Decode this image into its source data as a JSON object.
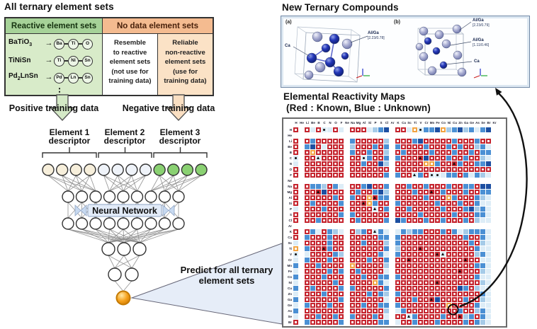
{
  "left_panel": {
    "title": "All ternary element sets",
    "table": {
      "reactive_header": "Reactive element sets",
      "no_data_header": "No data element sets",
      "rows": [
        {
          "formula": [
            [
              "t",
              "BaTiO"
            ],
            [
              "s",
              "3"
            ]
          ],
          "elements": [
            "Ba",
            "Ti",
            "O"
          ]
        },
        {
          "formula": [
            [
              "t",
              "TiNiSn"
            ]
          ],
          "elements": [
            "Ti",
            "Ni",
            "Sn"
          ]
        },
        {
          "formula": [
            [
              "t",
              "Pd"
            ],
            [
              "s",
              "2"
            ],
            [
              "t",
              "LnSn"
            ]
          ],
          "elements": [
            "Pd",
            "Ln",
            "Sn"
          ]
        }
      ],
      "ellipsis": "⋮",
      "resemble_lines": [
        "Resemble",
        "to reactive",
        "element sets",
        "(not use for",
        "training data)"
      ],
      "reliable_lines": [
        "Reliable",
        "non-reactive",
        "element sets",
        "(use for",
        "training data)"
      ]
    },
    "positive_label": "Positive training data",
    "negative_label": "Negative training data"
  },
  "network": {
    "descriptors": [
      {
        "line1": "Element 1",
        "line2": "descriptor"
      },
      {
        "line1": "Element 2",
        "line2": "descriptor"
      },
      {
        "line1": "Element 3",
        "line2": "descriptor"
      }
    ],
    "box_label": "Neural Network",
    "predict_line1": "Predict for all ternary",
    "predict_line2": "element sets"
  },
  "compounds": {
    "title": "New Ternary Compounds",
    "panel_a": {
      "tag": "(a)",
      "label_ca": "Ca",
      "label_alga": "Al/Ga",
      "label_alga_sub": "[2.23/0.78]"
    },
    "panel_b": {
      "tag": "(b)",
      "label_alga1": "Al/Ga",
      "label_alga1_sub": "[2.23/0.79]",
      "label_alga2": "Al/Ga",
      "label_alga2_sub": "[1.11/0.46]",
      "label_ca": "Ca"
    }
  },
  "reactivity": {
    "title": "Elemental Reactivity Maps",
    "subtitle": "(Red : Known, Blue : Unknown)",
    "legend": {
      "red_means": "Known",
      "blue_means": "Unknown"
    },
    "col_labels": [
      "H",
      "He",
      "Li",
      "Be",
      "B",
      "C",
      "N",
      "O",
      "F",
      "Ne",
      "Na",
      "Mg",
      "Al",
      "Si",
      "P",
      "S",
      "Cl",
      "Ar",
      "K",
      "Ca",
      "Sc",
      "Ti",
      "V",
      "Cr",
      "Mn",
      "Fe",
      "Co",
      "Ni",
      "Cu",
      "Zn",
      "Ga",
      "Ge",
      "As",
      "Se",
      "Br",
      "Kr"
    ],
    "row_labels": [
      "H",
      "He",
      "Li",
      "Be",
      "B",
      "C",
      "N",
      "O",
      "F",
      "Ne",
      "Na",
      "Mg",
      "Al",
      "Si",
      "P",
      "S",
      "Cl",
      "Ar",
      "K",
      "Ca",
      "Sc",
      "Ti",
      "V",
      "Cr",
      "Mn",
      "Fe",
      "Co",
      "Ni",
      "Cu",
      "Zn",
      "Ga",
      "Ge",
      "As",
      "Se",
      "Br"
    ],
    "grid": [
      "R.RwRCwRw.RrRwcbB.RRwOCbbBOcbBcbwbB.",
      "....................................",
      "R.RbrRRRr.bRrRrRc.RRrbBrrRrRbrRrbrR.",
      "R.bBrwRrR.cRrRbrb.bRrRrbRrrbRbrRcbw.",
      "R.rORrRrR.bRrbRrc.RbrrRrbRrRbrrbRbb.",
      "C.rRTrRrR.RrCbRrb.bRrRABrRrbRrbRrcw.",
      "w.RrRrRrR.rRbRrBc.RrRrrOObrRAbrRbbB.",
      "R.RrRrRrR.RrRrRrR.RrRrRrRrRrRrRrRrR.",
      "R.rRrRrRr.rRrRrRb.bRrTbrCCwbbrbwbcw.",
      "....................................",
      "R.Rbbcrbw.RrbBrRb.RrbrRbrrRbRrbbrBB.",
      "R.rRABrrR.rbRrbBc.RrRbrRArbRrRbrRbb.",
      "r.RrRrRbR.bRrOAbb.rRrRrbRrRObrRrbcw.",
      "R.rbRrRrb.RrAObrR.bRrRrRrbRrRbrRbww.",
      "w.RrRbrRr.rRrRTrb.RrbRrRrRbrRrbBcbw.",
      "R.rRrRrRb.bRrRrRr.rRrRbrRrRrbRrRbbw.",
      "R.RrbrRrR.rbRrRrb.BbrRrbRrbRrRbrcww.",
      "....................................",
      "R.Rbwrbcw.RcbrTbw.wbcbbrRrbrbwcbbbw.",
      "R.bRrRbrR.RrRrRbb.bRrRrRrRrRrRbrRbw.",
      "w.RrRrbRr.rRbrRrc.bRrRrRrRrRrRrbRcw.",
      "O.bRrAbrR.rRrRrRb.cRrRARrRrRrRrRbww.",
      "C.wRrRrbc.RrRrRbw.bRrRrRrATrRrRrcbw.",
      "w.bRrRbRr.rRrbRrb.RrARrRrRrRrRArRww.",
      "b.RrbrRrR.ORrRrRc.rRrRrRrRrRrRrRbbw.",
      "w.rRrRbrb.rbRrRrw.RrRrRrRrRrRArRrcw.",
      "b.RrRbrRr.RrbRrbb.bRrRrRrRrRrRrRbww.",
      "w.rRrRrbR.rRrRObw.RrRrRrRARrRrRrRcw.",
      "b.RbrRrRb.bRrRrRb.rRrRrRrRrRrBbrcww.",
      "w.rRrbRrR.RrRbrbc.bRrRrRrRrRrRrRrbw.",
      "b.RrRrRrb.rRrRrRw.RrRbrRABrRrRbrRcw.",
      "w.bRrRbRr.RrbRrbb.bRrRrRrRrOrRrRbww.",
      "b.RrRrRrR.rRrRrRc.wbrRrRrRrR@bRrcbw.",
      "w.rRbRrbr.bRrRbrw.RrTbrRrRbrRAcbRbw.",
      "R.bRrRrRb.RrRrRbb.wRrbRrRbrRrRbrbcw."
    ]
  },
  "colors": {
    "red": "#c5252f",
    "orange": "#f2a342",
    "blue_dark": "#1d4fa1",
    "blue_mid": "#4b90d4",
    "blue_light": "#a6cbe8",
    "blue_pale": "#ddedf7",
    "cream_node": "#f7efdb",
    "white_node": "#eff3f9",
    "green_node": "#8ad172",
    "output_node": "#f6a21d",
    "green_arrow": "#d4e9c6",
    "orange_arrow": "#fadfc2",
    "wedge": "#e6edf8"
  }
}
